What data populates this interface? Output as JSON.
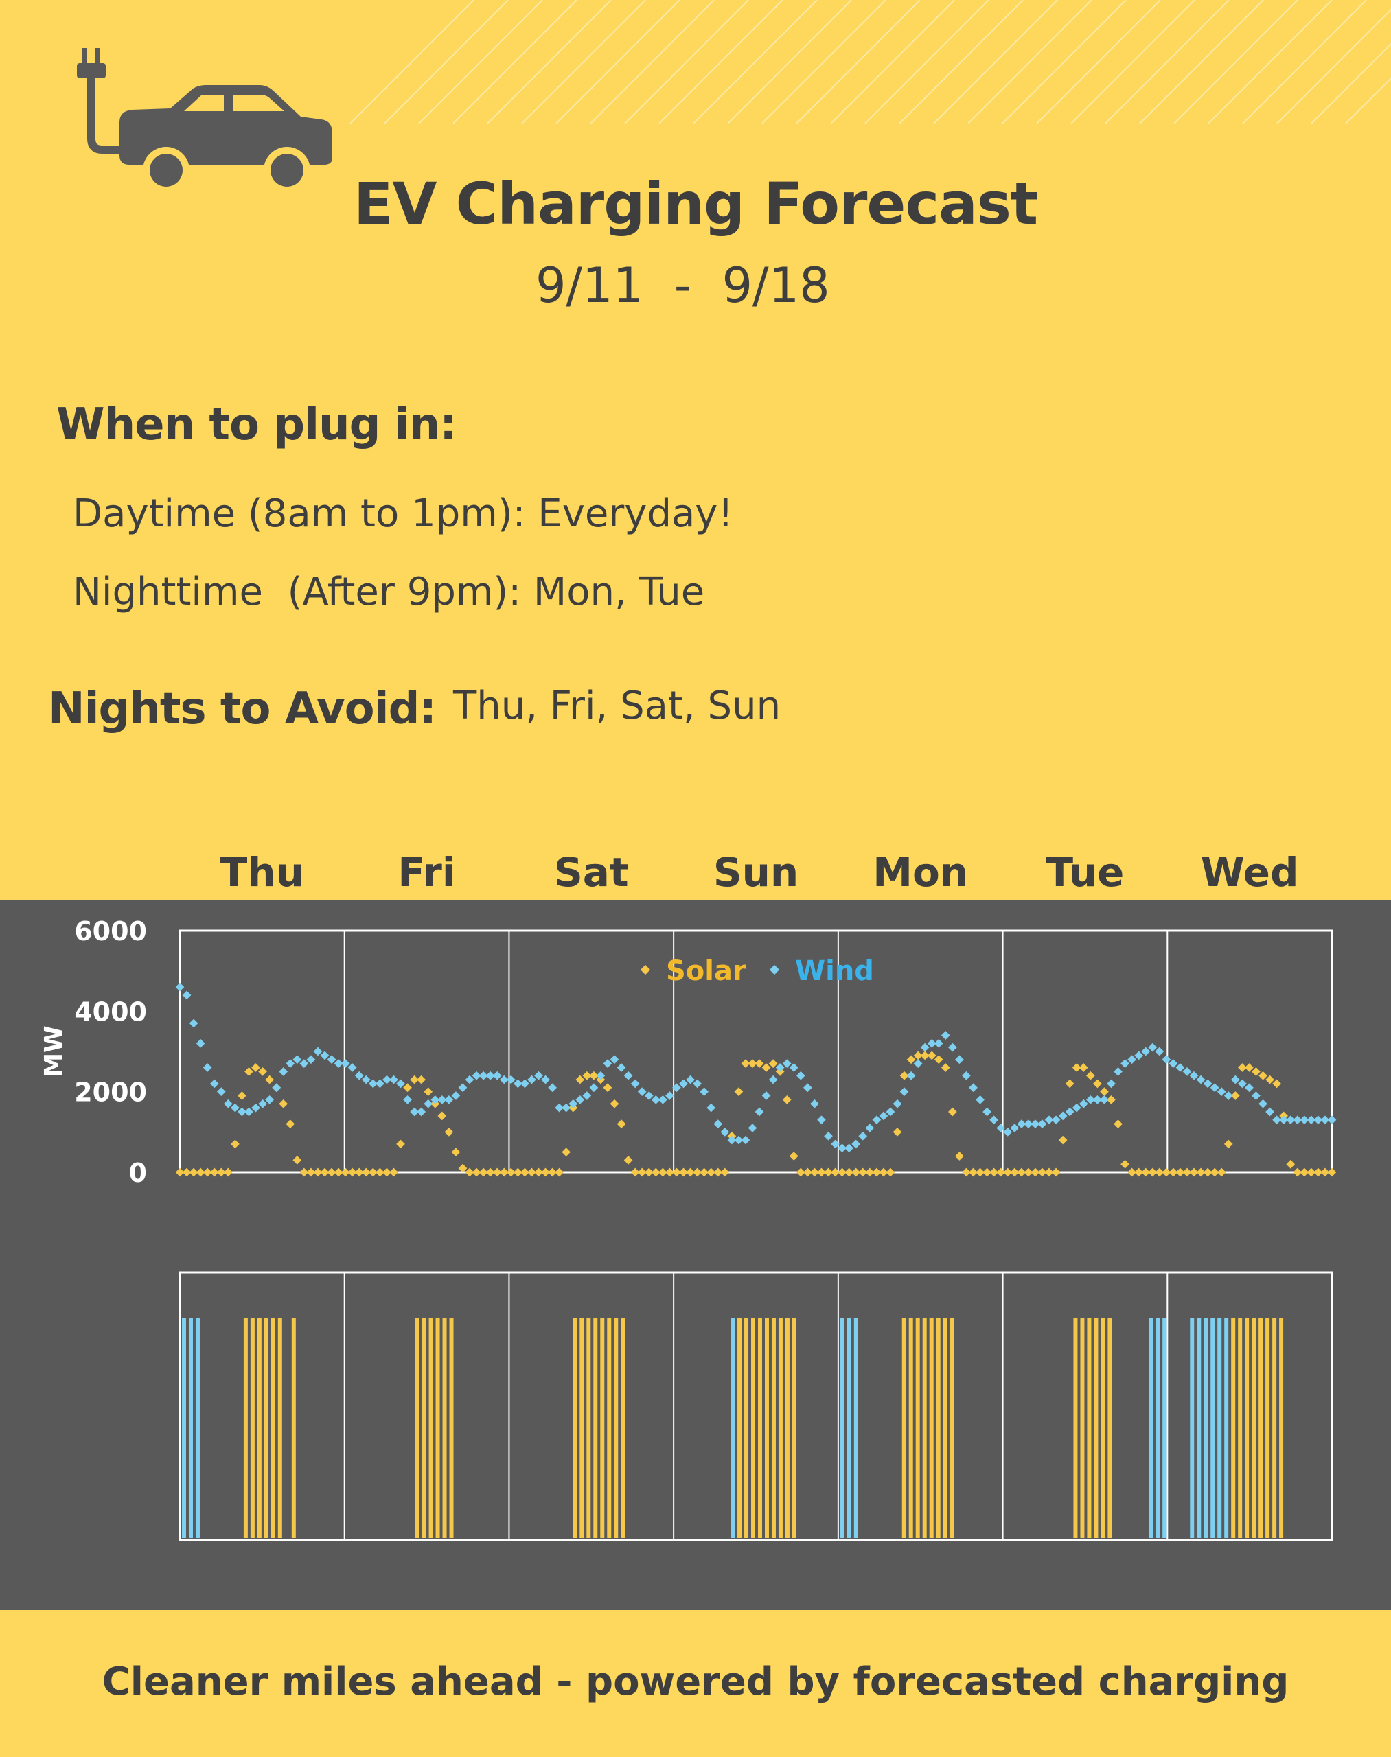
{
  "header": {
    "title": "EV Charging Forecast",
    "date_range": "9/11  -  9/18"
  },
  "icons": {
    "hero": "ev-car-plug-icon"
  },
  "plug_in": {
    "heading": "When to plug in:",
    "daytime": "Daytime (8am to 1pm): Everyday!",
    "nighttime": "Nighttime  (After 9pm): Mon, Tue"
  },
  "avoid": {
    "heading": "Nights to Avoid:",
    "days": "Thu, Fri, Sat, Sun"
  },
  "footer": "Cleaner miles ahead - powered by forecasted charging",
  "colors": {
    "background": "#fdd85d",
    "panel": "#595959",
    "text": "#3e3e3e",
    "solar": "#f5c84a",
    "wind": "#7fd0f0",
    "wind_label": "#3cb2ea",
    "solar_label": "#f1b92b"
  },
  "chart_data": [
    {
      "type": "scatter",
      "title": "",
      "xlabel": "",
      "ylabel": "MW",
      "days": [
        "Thu",
        "Fri",
        "Sat",
        "Sun",
        "Mon",
        "Tue",
        "Wed"
      ],
      "ylim": [
        0,
        6000
      ],
      "yticks": [
        0,
        2000,
        4000,
        6000
      ],
      "grid": "vertical lines between days",
      "legend": "top-center",
      "points_per_day": 24,
      "series": [
        {
          "name": "Solar",
          "values": [
            0,
            0,
            0,
            0,
            0,
            0,
            0,
            0,
            700,
            1900,
            2500,
            2600,
            2500,
            2300,
            2100,
            1700,
            1200,
            300,
            0,
            0,
            0,
            0,
            0,
            0,
            0,
            0,
            0,
            0,
            0,
            0,
            0,
            0,
            700,
            2100,
            2300,
            2300,
            2000,
            1700,
            1400,
            1000,
            500,
            100,
            0,
            0,
            0,
            0,
            0,
            0,
            0,
            0,
            0,
            0,
            0,
            0,
            0,
            0,
            500,
            1600,
            2300,
            2400,
            2400,
            2300,
            2100,
            1700,
            1200,
            300,
            0,
            0,
            0,
            0,
            0,
            0,
            0,
            0,
            0,
            0,
            0,
            0,
            0,
            0,
            900,
            2000,
            2700,
            2700,
            2700,
            2600,
            2700,
            2500,
            1800,
            400,
            0,
            0,
            0,
            0,
            0,
            0,
            0,
            0,
            0,
            0,
            0,
            0,
            0,
            0,
            1000,
            2400,
            2800,
            2900,
            2900,
            2900,
            2800,
            2600,
            1500,
            400,
            0,
            0,
            0,
            0,
            0,
            0,
            0,
            0,
            0,
            0,
            0,
            0,
            0,
            0,
            800,
            2200,
            2600,
            2600,
            2400,
            2200,
            2000,
            1800,
            1200,
            200,
            0,
            0,
            0,
            0,
            0,
            0,
            0,
            0,
            0,
            0,
            0,
            0,
            0,
            0,
            700,
            1900,
            2600,
            2600,
            2500,
            2400,
            2300,
            2200,
            1400,
            200,
            0,
            0,
            0,
            0,
            0,
            0
          ]
        },
        {
          "name": "Wind",
          "values": [
            4600,
            4400,
            3700,
            3200,
            2600,
            2200,
            2000,
            1700,
            1600,
            1500,
            1500,
            1600,
            1700,
            1800,
            2100,
            2500,
            2700,
            2800,
            2700,
            2800,
            3000,
            2900,
            2800,
            2700,
            2700,
            2600,
            2400,
            2300,
            2200,
            2200,
            2300,
            2300,
            2200,
            1800,
            1500,
            1500,
            1700,
            1800,
            1800,
            1800,
            1900,
            2100,
            2300,
            2400,
            2400,
            2400,
            2400,
            2300,
            2300,
            2200,
            2200,
            2300,
            2400,
            2300,
            2100,
            1600,
            1600,
            1700,
            1800,
            1900,
            2100,
            2400,
            2700,
            2800,
            2600,
            2400,
            2200,
            2000,
            1900,
            1800,
            1800,
            1900,
            2100,
            2200,
            2300,
            2200,
            2000,
            1600,
            1200,
            1000,
            800,
            800,
            800,
            1100,
            1500,
            1900,
            2300,
            2600,
            2700,
            2600,
            2400,
            2100,
            1700,
            1300,
            900,
            700,
            600,
            600,
            700,
            900,
            1100,
            1300,
            1400,
            1500,
            1700,
            2000,
            2400,
            2700,
            3100,
            3200,
            3200,
            3400,
            3100,
            2800,
            2400,
            2100,
            1800,
            1500,
            1300,
            1100,
            1000,
            1100,
            1200,
            1200,
            1200,
            1200,
            1300,
            1300,
            1400,
            1500,
            1600,
            1700,
            1800,
            1800,
            1800,
            2200,
            2500,
            2700,
            2800,
            2900,
            3000,
            3100,
            3000,
            2800,
            2700,
            2600,
            2500,
            2400,
            2300,
            2200,
            2100,
            2000,
            1900,
            2300,
            2200,
            2100,
            1900,
            1700,
            1500,
            1300,
            1300,
            1300,
            1300,
            1300,
            1300,
            1300,
            1300,
            1300
          ]
        }
      ]
    },
    {
      "type": "bar",
      "title": "",
      "description_series": [
        "Wind",
        "Solar"
      ],
      "days": [
        "Thu",
        "Fri",
        "Sat",
        "Sun",
        "Mon",
        "Tue",
        "Wed"
      ],
      "points_per_day": 24,
      "recommended_hours": [
        {
          "day": "Thu",
          "wind": [
            0,
            1,
            2
          ],
          "solar": [
            9,
            10,
            11,
            12,
            13,
            14,
            16
          ]
        },
        {
          "day": "Fri",
          "wind": [],
          "solar": [
            10,
            11,
            12,
            13,
            14,
            15
          ]
        },
        {
          "day": "Sat",
          "wind": [],
          "solar": [
            9,
            10,
            11,
            12,
            13,
            14,
            15,
            16
          ]
        },
        {
          "day": "Sun",
          "wind": [
            8
          ],
          "solar": [
            9,
            10,
            11,
            12,
            13,
            14,
            15,
            16,
            17
          ]
        },
        {
          "day": "Mon",
          "wind": [
            0,
            1,
            2
          ],
          "solar": [
            9,
            10,
            11,
            12,
            13,
            14,
            15,
            16
          ]
        },
        {
          "day": "Tue",
          "wind": [
            22,
            23,
            -1,
            -2,
            -3
          ],
          "solar": [
            10,
            11,
            12,
            13,
            14,
            15
          ]
        },
        {
          "day": "Wed",
          "wind": [
            3,
            4,
            5,
            6,
            7,
            8
          ],
          "solar": [
            9,
            10,
            11,
            12,
            13,
            14,
            15,
            16
          ]
        }
      ]
    }
  ]
}
